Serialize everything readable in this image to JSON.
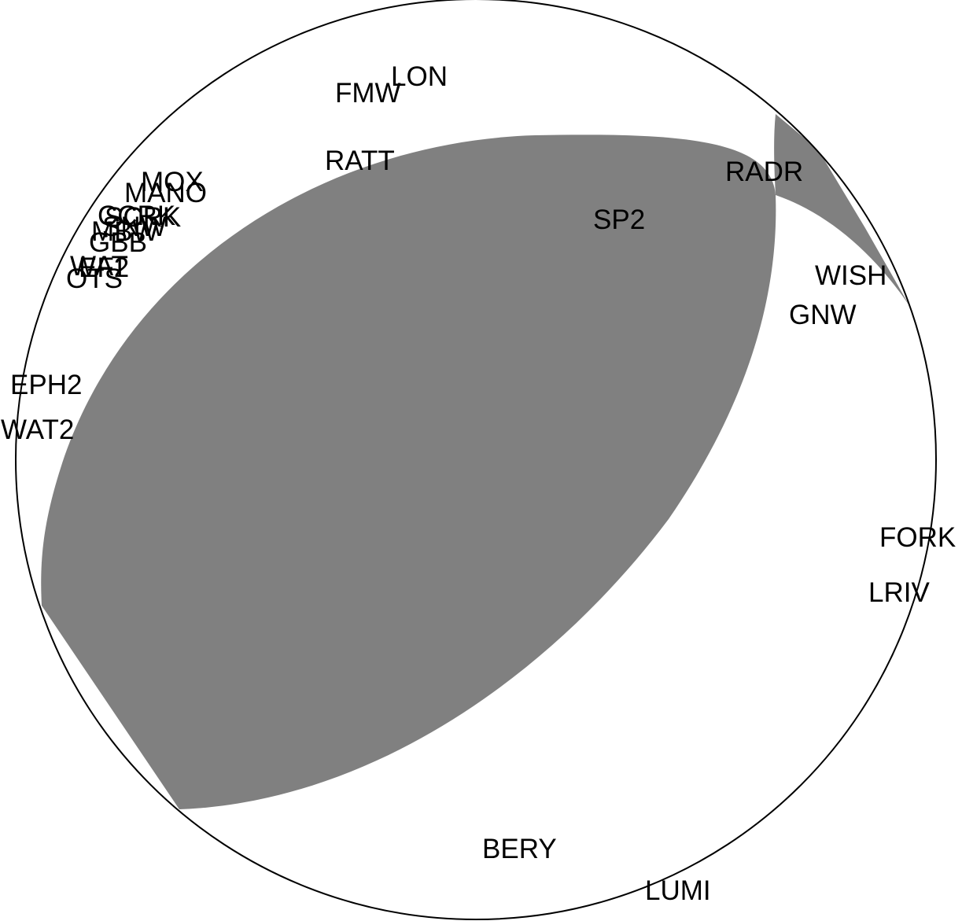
{
  "colors": {
    "compressional_quadrant": "#808080",
    "dilatational_quadrant": "#ffffff",
    "outline": "#000000",
    "label": "#000000"
  },
  "stations": [
    {
      "id": "lon",
      "code": "LON"
    },
    {
      "id": "fmw",
      "code": "FMW"
    },
    {
      "id": "ratt",
      "code": "RATT"
    },
    {
      "id": "radr",
      "code": "RADR"
    },
    {
      "id": "sp2",
      "code": "SP2"
    },
    {
      "id": "mox",
      "code": "MOX"
    },
    {
      "id": "mano",
      "code": "MANO"
    },
    {
      "id": "scrk",
      "code": "SCRK"
    },
    {
      "id": "ccrk",
      "code": "CCRK"
    },
    {
      "id": "snw",
      "code": "SNW"
    },
    {
      "id": "mbw",
      "code": "MBW"
    },
    {
      "id": "gbb",
      "code": "GBB"
    },
    {
      "id": "wat",
      "code": "WAT"
    },
    {
      "id": "ef2",
      "code": "EF2"
    },
    {
      "id": "ots",
      "code": "OTS"
    },
    {
      "id": "wish",
      "code": "WISH"
    },
    {
      "id": "gnw",
      "code": "GNW"
    },
    {
      "id": "eph2",
      "code": "EPH2"
    },
    {
      "id": "wat2",
      "code": "WAT2"
    },
    {
      "id": "fork",
      "code": "FORK"
    },
    {
      "id": "lriv",
      "code": "LRIV"
    },
    {
      "id": "bery",
      "code": "BERY"
    },
    {
      "id": "lumi",
      "code": "LUMI"
    }
  ]
}
